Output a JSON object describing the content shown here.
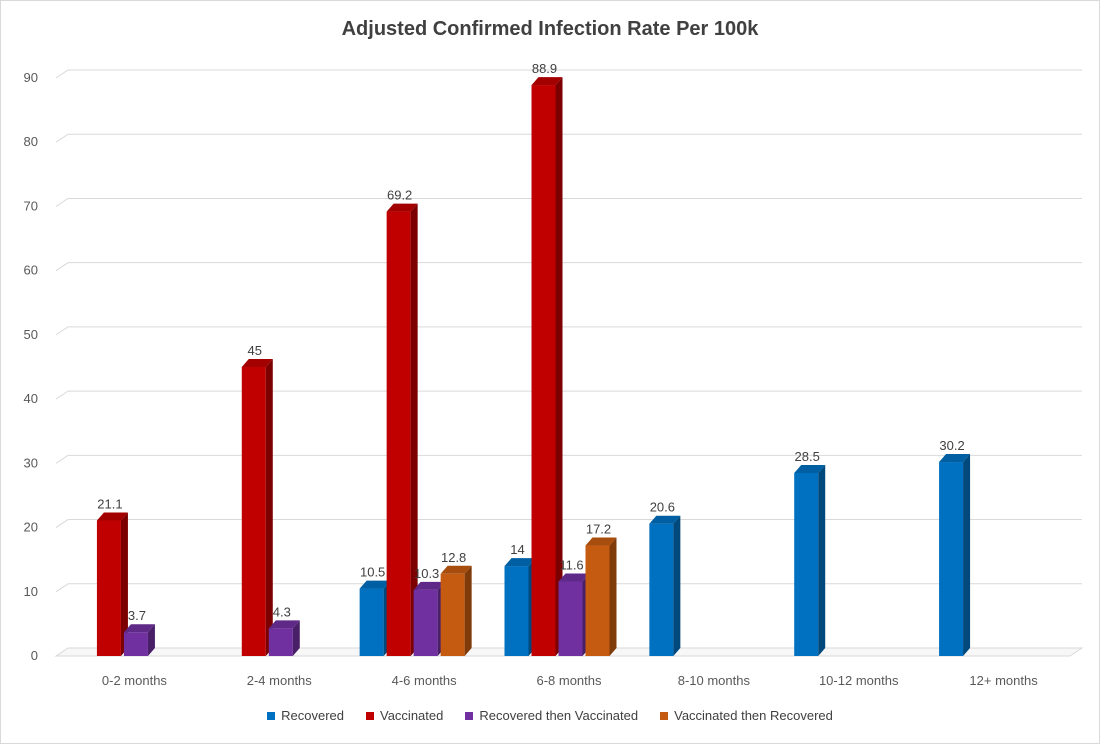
{
  "chart_data": {
    "type": "bar",
    "title": "Adjusted Confirmed Infection Rate Per 100k",
    "categories": [
      "0-2 months",
      "2-4 months",
      "4-6 months",
      "6-8 months",
      "8-10 months",
      "10-12 months",
      "12+ months"
    ],
    "ylim": [
      0,
      90
    ],
    "yticks": [
      0,
      10,
      20,
      30,
      40,
      50,
      60,
      70,
      80,
      90
    ],
    "grid": true,
    "legend_position": "bottom",
    "series": [
      {
        "name": "Recovered",
        "color": "#0070C0",
        "values": [
          null,
          null,
          10.5,
          14,
          20.6,
          28.5,
          30.2
        ]
      },
      {
        "name": "Vaccinated",
        "color": "#C00000",
        "values": [
          21.1,
          45,
          69.2,
          88.9,
          null,
          null,
          null
        ]
      },
      {
        "name": "Recovered then Vaccinated",
        "color": "#7030A0",
        "values": [
          3.7,
          4.3,
          10.3,
          11.6,
          null,
          null,
          null
        ]
      },
      {
        "name": "Vaccinated then Recovered",
        "color": "#C55A11",
        "values": [
          null,
          null,
          12.8,
          17.2,
          null,
          null,
          null
        ]
      }
    ]
  }
}
